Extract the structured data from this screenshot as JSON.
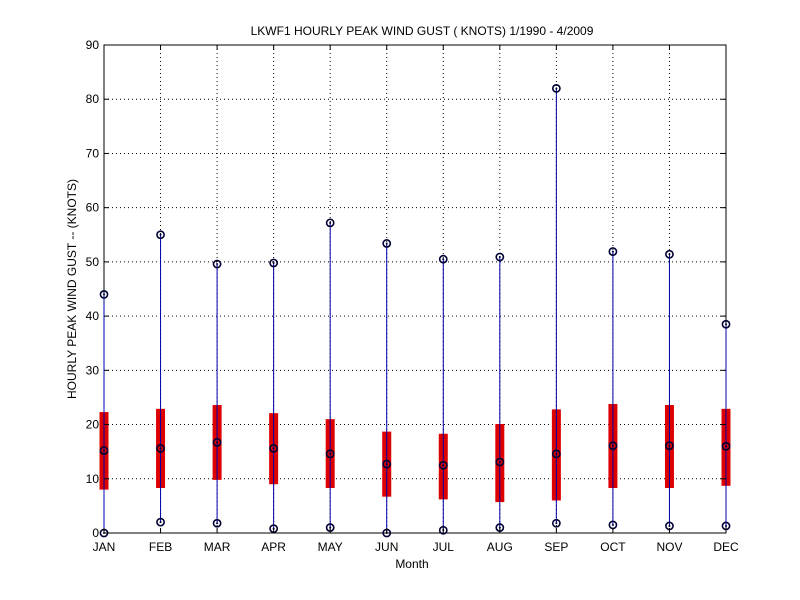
{
  "chart_data": {
    "type": "boxplot",
    "title": "LKWF1  HOURLY PEAK WIND GUST ( KNOTS) 1/1990 - 4/2009",
    "xlabel": "Month",
    "ylabel": "HOURLY PEAK WIND GUST -- (KNOTS)",
    "ylim": [
      0,
      90
    ],
    "yticks": [
      0,
      10,
      20,
      30,
      40,
      50,
      60,
      70,
      80,
      90
    ],
    "grid": true,
    "colors": {
      "whisker": "#0000aa",
      "box": "#dd0000",
      "marker": "#000033",
      "grid": "#000000"
    },
    "categories": [
      "JAN",
      "FEB",
      "MAR",
      "APR",
      "MAY",
      "JUN",
      "JUL",
      "AUG",
      "SEP",
      "OCT",
      "NOV",
      "DEC"
    ],
    "series": [
      {
        "min": [
          0,
          2,
          1.8,
          0.8,
          1,
          0,
          0.5,
          1,
          1.8,
          1.5,
          1.3,
          1.3
        ]
      },
      {
        "q1": [
          8,
          8.3,
          9.8,
          9,
          8.3,
          6.7,
          6.2,
          5.7,
          6,
          8.3,
          8.3,
          8.7
        ]
      },
      {
        "median": [
          15.2,
          15.6,
          16.7,
          15.6,
          14.6,
          12.7,
          12.5,
          13.1,
          14.6,
          16.1,
          16.1,
          16
        ]
      },
      {
        "q3": [
          22.3,
          22.9,
          23.6,
          22.1,
          21,
          18.7,
          18.3,
          20.1,
          22.8,
          23.8,
          23.6,
          22.9
        ]
      },
      {
        "max": [
          44,
          55,
          49.6,
          49.8,
          57.2,
          53.4,
          50.5,
          50.9,
          82,
          51.9,
          51.4,
          38.5
        ]
      }
    ]
  }
}
